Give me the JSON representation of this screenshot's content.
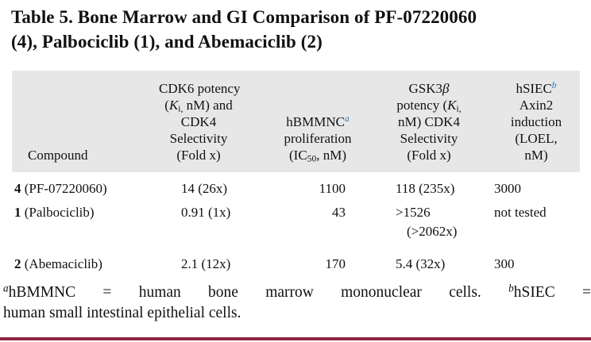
{
  "colors": {
    "header_background": "#e7e7e7",
    "footnote_marker_blue": "#2e74b5",
    "bottom_rule_maroon": "#8e2344"
  },
  "title": {
    "line1": "Table 5. Bone Marrow and GI Comparison of PF-07220060",
    "line2": "(4), Palbociclib (1), and Abemaciclib (2)"
  },
  "table": {
    "headers": {
      "compound": "Compound",
      "cdk6_html": "CDK6 potency<br>(<i>K</i><sub>i,</sub> nM) and<br>CDK4<br>Selectivity<br>(Fold x)",
      "hbmmnc_html": "hBMMNC<sup class=\"sup-blue\"><i>a</i></sup><br>proliferation<br>(IC<sub>50</sub>, nM)",
      "gsk3b_html": "GSK3<i>β</i><br>potency (<i>K</i><sub>i,</sub><br>nM) CDK4<br>Selectivity<br>(Fold x)",
      "hsiec_html": "hSIEC<sup class=\"sup-blue\"><i>b</i></sup><br>Axin2<br>induction<br>(LOEL,<br>nM)"
    },
    "rows": [
      {
        "compound_html": "<b>4</b> (PF-07220060)",
        "cdk6": "14 (26x)",
        "hbmmnc": "1100",
        "gsk3b_html": "118 (235x)",
        "hsiec": "3000"
      },
      {
        "compound_html": "<b>1</b> (Palbociclib)",
        "cdk6": "0.91 (1x)",
        "hbmmnc": "43",
        "gsk3b_html": ">1526<br><span class=\"wrap-indent\">(>2062x)</span>",
        "hsiec": "not tested"
      },
      {
        "compound_html": "<b>2</b> (Abemaciclib)",
        "cdk6": "2.1 (12x)",
        "hbmmnc": "170",
        "gsk3b_html": "5.4 (32x)",
        "hsiec": "300"
      }
    ]
  },
  "footnote": {
    "line1_html": "<sup><i>a</i></sup>hBMMNC = human bone marrow mononuclear cells. <sup><i>b</i></sup>hSIEC =",
    "line2_html": "human small intestinal epithelial cells."
  }
}
